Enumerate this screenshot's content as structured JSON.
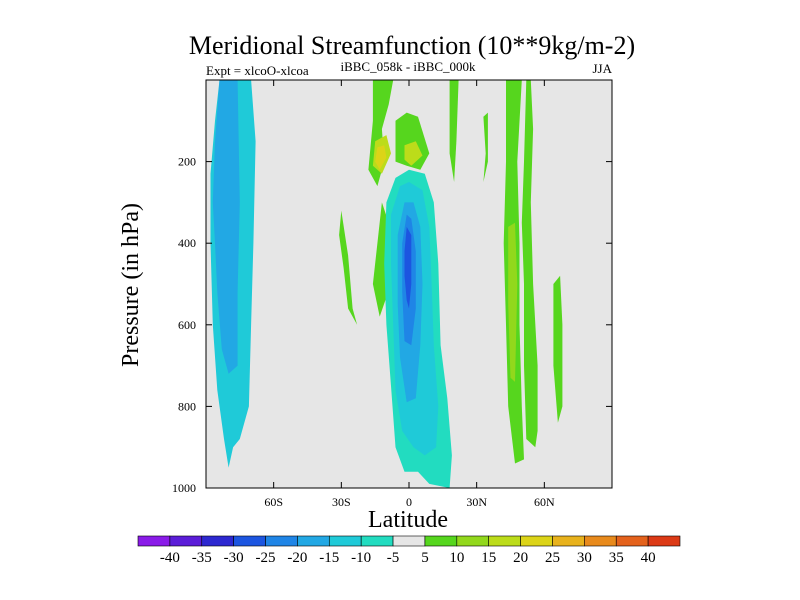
{
  "chart_data": {
    "type": "filled-contour",
    "title": "Meridional Streamfunction (10**9kg/m-2)",
    "left_label": "Expt = xlcoO-xlcoa",
    "center_label": "iBBC_058k - iBBC_000k",
    "right_label": "JJA",
    "xlabel": "Latitude",
    "ylabel": "Pressure (in hPa)",
    "x_ticks": [
      {
        "value": -60,
        "label": "60S"
      },
      {
        "value": -30,
        "label": "30S"
      },
      {
        "value": 0,
        "label": "0"
      },
      {
        "value": 30,
        "label": "30N"
      },
      {
        "value": 60,
        "label": "60N"
      }
    ],
    "y_ticks": [
      {
        "value": 200,
        "label": "200"
      },
      {
        "value": 400,
        "label": "400"
      },
      {
        "value": 600,
        "label": "600"
      },
      {
        "value": 800,
        "label": "800"
      },
      {
        "value": 1000,
        "label": "1000"
      }
    ],
    "xlim": [
      -90,
      90
    ],
    "ylim": [
      1000,
      0
    ],
    "background_color": "#e6e6e6",
    "colorbar": {
      "levels": [
        "-40",
        "-35",
        "-30",
        "-25",
        "-20",
        "-15",
        "-10",
        "-5",
        "5",
        "10",
        "15",
        "20",
        "25",
        "30",
        "35",
        "40"
      ],
      "colors": [
        "#8a1be8",
        "#5b1dd8",
        "#2d28d0",
        "#1c55e0",
        "#1f85e6",
        "#22a8e4",
        "#1fcad8",
        "#22dcc0",
        "#e6e6e6",
        "#56d61e",
        "#92d81c",
        "#bcdc1a",
        "#dcd418",
        "#e8b21c",
        "#e88a1c",
        "#e4621c",
        "#dc3a16"
      ]
    },
    "regions": [
      {
        "level": -10,
        "points": [
          [
            -88,
            230
          ],
          [
            -86,
            100
          ],
          [
            -84,
            0
          ],
          [
            -70,
            0
          ],
          [
            -68,
            150
          ],
          [
            -69,
            400
          ],
          [
            -70,
            600
          ],
          [
            -71,
            800
          ],
          [
            -75,
            880
          ],
          [
            -78,
            900
          ],
          [
            -80,
            950
          ],
          [
            -82,
            880
          ],
          [
            -85,
            760
          ],
          [
            -87,
            600
          ],
          [
            -88,
            400
          ]
        ]
      },
      {
        "level": -15,
        "points": [
          [
            -87,
            300
          ],
          [
            -86,
            150
          ],
          [
            -84,
            0
          ],
          [
            -76,
            0
          ],
          [
            -75,
            300
          ],
          [
            -76,
            520
          ],
          [
            -76,
            700
          ],
          [
            -80,
            720
          ],
          [
            -83,
            660
          ],
          [
            -85,
            520
          ],
          [
            -86,
            400
          ]
        ]
      },
      {
        "level": 5,
        "points": [
          [
            -16,
            0
          ],
          [
            -7,
            0
          ],
          [
            -9,
            60
          ],
          [
            -12,
            120
          ],
          [
            -11,
            200
          ],
          [
            -14,
            260
          ],
          [
            -18,
            220
          ],
          [
            -16,
            100
          ]
        ]
      },
      {
        "level": 5,
        "points": [
          [
            -6,
            100
          ],
          [
            -1,
            80
          ],
          [
            4,
            90
          ],
          [
            9,
            180
          ],
          [
            5,
            220
          ],
          [
            -1,
            210
          ],
          [
            -6,
            200
          ]
        ]
      },
      {
        "level": 15,
        "points": [
          [
            -15,
            150
          ],
          [
            -10,
            135
          ],
          [
            -8,
            180
          ],
          [
            -12,
            230
          ],
          [
            -16,
            210
          ]
        ]
      },
      {
        "level": 15,
        "points": [
          [
            -2,
            160
          ],
          [
            3,
            150
          ],
          [
            6,
            185
          ],
          [
            1,
            210
          ],
          [
            -2,
            195
          ]
        ]
      },
      {
        "level": 20,
        "points": [
          [
            -14,
            165
          ],
          [
            -11,
            160
          ],
          [
            -10,
            190
          ],
          [
            -13,
            220
          ],
          [
            -15,
            200
          ]
        ]
      },
      {
        "level": 5,
        "points": [
          [
            -30,
            320
          ],
          [
            -27,
            430
          ],
          [
            -25,
            560
          ],
          [
            -23,
            600
          ],
          [
            -27,
            560
          ],
          [
            -29,
            460
          ],
          [
            -31,
            380
          ]
        ]
      },
      {
        "level": 5,
        "points": [
          [
            -12,
            300
          ],
          [
            -9,
            350
          ],
          [
            -8,
            500
          ],
          [
            -13,
            580
          ],
          [
            -16,
            500
          ],
          [
            -14,
            400
          ]
        ]
      },
      {
        "level": 5,
        "points": [
          [
            18,
            0
          ],
          [
            22,
            0
          ],
          [
            21,
            150
          ],
          [
            20,
            250
          ],
          [
            18,
            180
          ]
        ]
      },
      {
        "level": 5,
        "points": [
          [
            33,
            90
          ],
          [
            35,
            80
          ],
          [
            35,
            200
          ],
          [
            33,
            250
          ],
          [
            34,
            180
          ]
        ]
      },
      {
        "level": 5,
        "points": [
          [
            52,
            0
          ],
          [
            54,
            0
          ],
          [
            55,
            120
          ],
          [
            54,
            300
          ],
          [
            55,
            500
          ],
          [
            57,
            700
          ],
          [
            57,
            860
          ],
          [
            56,
            900
          ],
          [
            52,
            880
          ],
          [
            51,
            700
          ],
          [
            51,
            500
          ],
          [
            50,
            350
          ],
          [
            51,
            200
          ]
        ]
      },
      {
        "level": 5,
        "points": [
          [
            43,
            0
          ],
          [
            50,
            0
          ],
          [
            48,
            200
          ],
          [
            49,
            400
          ],
          [
            49,
            600
          ],
          [
            50,
            800
          ],
          [
            51,
            930
          ],
          [
            47,
            940
          ],
          [
            44,
            800
          ],
          [
            43,
            600
          ],
          [
            42,
            400
          ],
          [
            43,
            200
          ]
        ]
      },
      {
        "level": 10,
        "points": [
          [
            44,
            360
          ],
          [
            47,
            350
          ],
          [
            48,
            500
          ],
          [
            47,
            740
          ],
          [
            45,
            730
          ],
          [
            44,
            550
          ]
        ]
      },
      {
        "level": 5,
        "points": [
          [
            64,
            500
          ],
          [
            67,
            480
          ],
          [
            68,
            600
          ],
          [
            68,
            800
          ],
          [
            66,
            840
          ],
          [
            64,
            700
          ]
        ]
      },
      {
        "level": -5,
        "points": [
          [
            -10,
            300
          ],
          [
            -6,
            240
          ],
          [
            0,
            220
          ],
          [
            7,
            230
          ],
          [
            11,
            300
          ],
          [
            13,
            450
          ],
          [
            14,
            650
          ],
          [
            17,
            780
          ],
          [
            19,
            920
          ],
          [
            18,
            1000
          ],
          [
            9,
            990
          ],
          [
            4,
            960
          ],
          [
            -2,
            960
          ],
          [
            -6,
            900
          ],
          [
            -8,
            750
          ],
          [
            -10,
            600
          ],
          [
            -11,
            450
          ]
        ]
      },
      {
        "level": -10,
        "points": [
          [
            -8,
            330
          ],
          [
            -4,
            260
          ],
          [
            0,
            250
          ],
          [
            6,
            270
          ],
          [
            9,
            360
          ],
          [
            10,
            500
          ],
          [
            11,
            650
          ],
          [
            13,
            800
          ],
          [
            12,
            900
          ],
          [
            7,
            920
          ],
          [
            2,
            900
          ],
          [
            -3,
            860
          ],
          [
            -6,
            760
          ],
          [
            -7,
            600
          ],
          [
            -8,
            450
          ]
        ]
      },
      {
        "level": -15,
        "points": [
          [
            -5,
            380
          ],
          [
            -2,
            300
          ],
          [
            2,
            300
          ],
          [
            5,
            360
          ],
          [
            6,
            500
          ],
          [
            5,
            650
          ],
          [
            3,
            780
          ],
          [
            -1,
            790
          ],
          [
            -4,
            680
          ],
          [
            -5,
            550
          ]
        ]
      },
      {
        "level": -20,
        "points": [
          [
            -3,
            400
          ],
          [
            -1,
            330
          ],
          [
            1,
            340
          ],
          [
            3,
            420
          ],
          [
            3,
            560
          ],
          [
            1,
            650
          ],
          [
            -2,
            640
          ],
          [
            -3,
            520
          ]
        ]
      },
      {
        "level": -25,
        "points": [
          [
            -2,
            420
          ],
          [
            -1,
            360
          ],
          [
            1,
            380
          ],
          [
            1,
            500
          ],
          [
            0,
            560
          ],
          [
            -1,
            540
          ],
          [
            -2,
            480
          ]
        ]
      }
    ]
  }
}
